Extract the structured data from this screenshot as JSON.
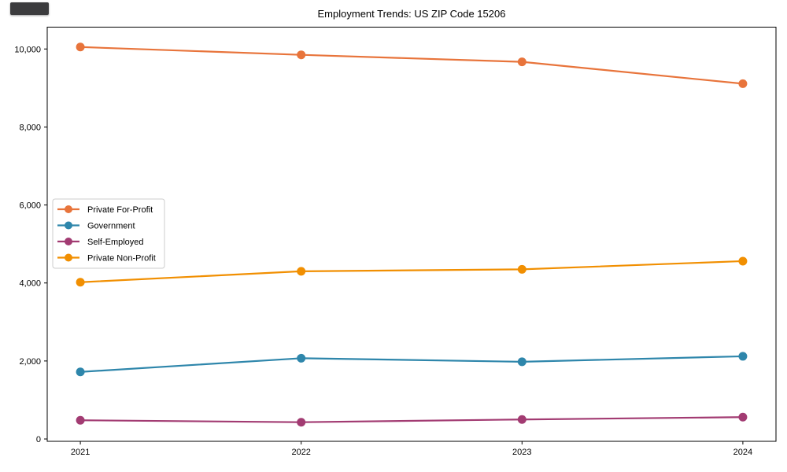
{
  "figure": {
    "title": "Employment Trends: US ZIP Code 15206"
  },
  "chart_data": {
    "type": "line",
    "title": "Employment Trends: US ZIP Code 15206",
    "xlabel": "",
    "ylabel": "",
    "x": [
      2021,
      2022,
      2023,
      2024
    ],
    "x_tick_labels": [
      "2021",
      "2022",
      "2023",
      "2024"
    ],
    "y_ticks": [
      0,
      2000,
      4000,
      6000,
      8000,
      10000
    ],
    "y_tick_labels": [
      "0",
      "2,000",
      "4,000",
      "6,000",
      "8,000",
      "10,000"
    ],
    "xlim": [
      2020.85,
      2024.15
    ],
    "ylim": [
      -60,
      10560
    ],
    "grid": false,
    "legend_position": "center-left",
    "series": [
      {
        "name": "Private For-Profit",
        "color": "#E8743B",
        "values": [
          10050,
          9850,
          9670,
          9110
        ]
      },
      {
        "name": "Government",
        "color": "#2E86AB",
        "values": [
          1720,
          2070,
          1980,
          2120
        ]
      },
      {
        "name": "Self-Employed",
        "color": "#A23B72",
        "values": [
          480,
          430,
          500,
          560
        ]
      },
      {
        "name": "Private Non-Profit",
        "color": "#F18F01",
        "values": [
          4020,
          4300,
          4350,
          4560
        ]
      }
    ]
  }
}
